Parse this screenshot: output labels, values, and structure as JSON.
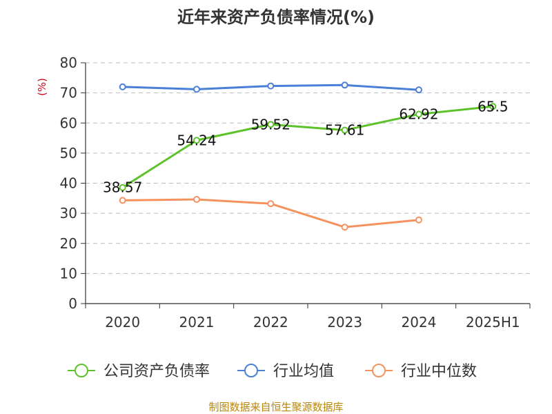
{
  "chart_data": {
    "type": "line",
    "title": "近年来资产负债率情况(%)",
    "y_unit": "(%)",
    "categories": [
      "2020",
      "2021",
      "2022",
      "2023",
      "2024",
      "2025H1"
    ],
    "ylim": [
      0,
      80
    ],
    "yticks": [
      "0",
      "10",
      "20",
      "30",
      "40",
      "50",
      "60",
      "70",
      "80"
    ],
    "grid": "horizontal-dashed",
    "legend_position": "bottom",
    "series": [
      {
        "name": "公司资产负债率",
        "color": "#5dc22a",
        "values": [
          38.57,
          54.24,
          59.52,
          57.61,
          62.92,
          65.5
        ],
        "labels": [
          "38.57",
          "54.24",
          "59.52",
          "57.61",
          "62.92",
          "65.5"
        ]
      },
      {
        "name": "行业均值",
        "color": "#4a7fd8",
        "values": [
          72.0,
          71.2,
          72.3,
          72.6,
          71.0,
          null
        ],
        "labels": []
      },
      {
        "name": "行业中位数",
        "color": "#f5925e",
        "values": [
          34.3,
          34.6,
          33.2,
          25.4,
          27.8,
          null
        ],
        "labels": []
      }
    ]
  },
  "source": "制图数据来自恒生聚源数据库"
}
